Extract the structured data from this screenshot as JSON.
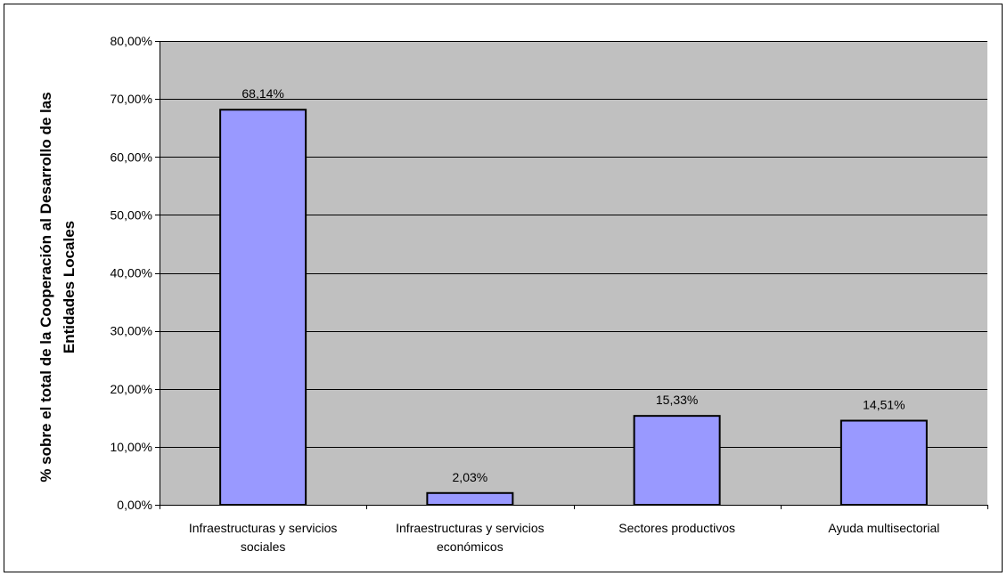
{
  "chart_data": {
    "type": "bar",
    "title": "",
    "xlabel": "",
    "ylabel_lines": [
      "% sobre el total de la Cooperación al Desarrollo de las",
      "Entidades Locales"
    ],
    "categories": [
      [
        "Infraestructuras y servicios",
        "sociales"
      ],
      [
        "Infraestructuras y servicios",
        "económicos"
      ],
      [
        "Sectores productivos"
      ],
      [
        "Ayuda multisectorial"
      ]
    ],
    "values": [
      68.14,
      2.03,
      15.33,
      14.51
    ],
    "data_labels": [
      "68,14%",
      "2,03%",
      "15,33%",
      "14,51%"
    ],
    "ylim": [
      0,
      80
    ],
    "yticks": [
      0,
      10,
      20,
      30,
      40,
      50,
      60,
      70,
      80
    ],
    "ytick_labels": [
      "0,00%",
      "10,00%",
      "20,00%",
      "30,00%",
      "40,00%",
      "50,00%",
      "60,00%",
      "70,00%",
      "80,00%"
    ],
    "grid": true,
    "legend": "none",
    "colors": {
      "plot_background": "#c0c0c0",
      "bar_fill": "#9999ff",
      "bar_stroke": "#000000",
      "gridline": "#000000"
    }
  }
}
